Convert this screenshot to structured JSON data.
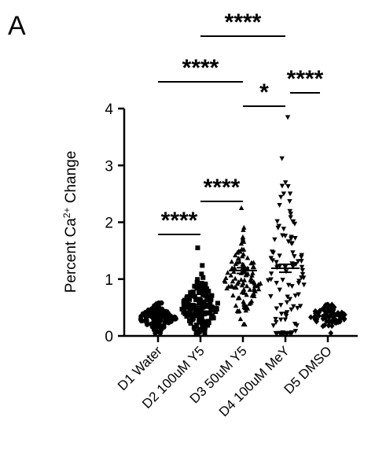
{
  "panel_label": "A",
  "chart_data": {
    "type": "scatter",
    "ylabel_text": "Percent  Ca",
    "ylabel_sup": "2+",
    "ylabel_tail": " Change",
    "ylim": [
      0,
      4
    ],
    "yticks": [
      "0",
      "1",
      "2",
      "3",
      "4"
    ],
    "categories": [
      "D1 Water",
      "D2 100uM Y5",
      "D3 50uM Y5",
      "D4 100uM MeY",
      "D5 DMSO"
    ],
    "means": [
      0.33,
      0.52,
      1.15,
      1.19,
      0.35
    ],
    "sem": [
      0.02,
      0.03,
      0.05,
      0.07,
      0.02
    ],
    "markers": [
      "circle",
      "square",
      "triangle",
      "triangle-down",
      "diamond"
    ],
    "distributions": [
      {
        "min": 0.05,
        "max": 0.58,
        "center": 0.32,
        "spread": 0.12,
        "n": 110
      },
      {
        "min": 0.05,
        "max": 1.55,
        "center": 0.5,
        "spread": 0.25,
        "n": 150
      },
      {
        "min": 0.2,
        "max": 2.25,
        "center": 1.0,
        "spread": 0.35,
        "n": 110
      },
      {
        "min": 0.05,
        "max": 3.85,
        "center": 1.0,
        "spread": 0.9,
        "n": 110
      },
      {
        "min": 0.05,
        "max": 0.55,
        "center": 0.34,
        "spread": 0.11,
        "n": 80
      }
    ],
    "significance": [
      {
        "from": 0,
        "to": 1,
        "label": "****"
      },
      {
        "from": 1,
        "to": 2,
        "label": "****"
      },
      {
        "from": 0,
        "to": 2,
        "label": "****"
      },
      {
        "from": 1,
        "to": 3,
        "label": "****"
      },
      {
        "from": 2,
        "to": 3,
        "label": "*"
      },
      {
        "from": 3,
        "to": 4,
        "label": "****"
      }
    ]
  }
}
